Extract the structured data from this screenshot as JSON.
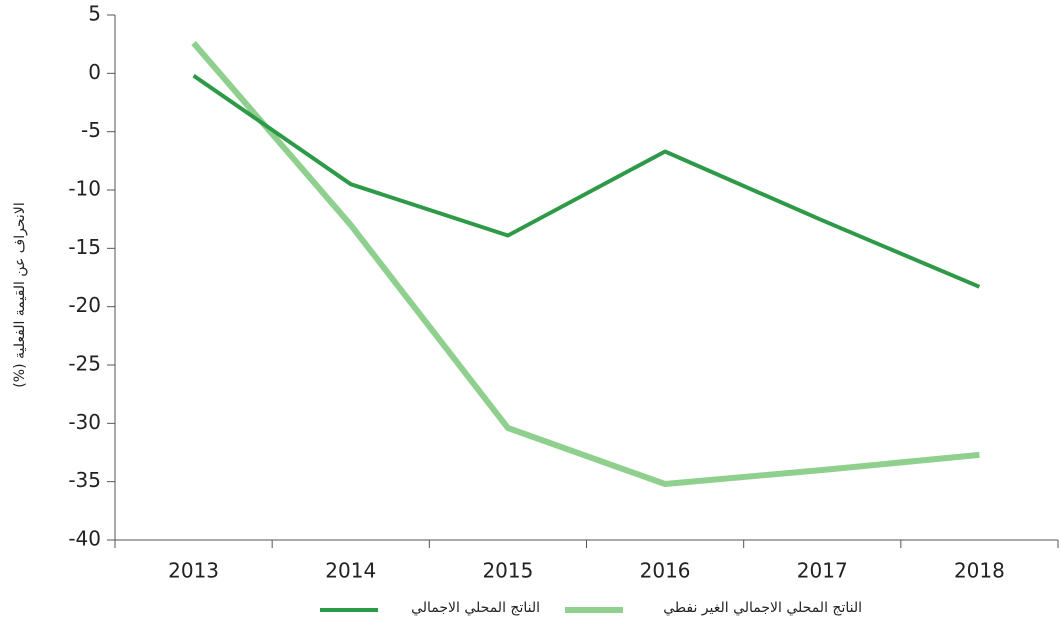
{
  "chart_data": {
    "type": "line",
    "y_label": "الانحراف عن القيمة الفعلية (%)",
    "categories": [
      "2013",
      "2014",
      "2015",
      "2016",
      "2017",
      "2018"
    ],
    "series": [
      {
        "name": "الناتج المحلي الاجمالي",
        "color": "#2e9a48",
        "values": [
          -0.2,
          -9.5,
          -13.9,
          -6.7,
          -12.6,
          -18.3
        ]
      },
      {
        "name": "الناتج المحلي الاجمالي الغير نفطي",
        "color": "#8fd08f",
        "values": [
          2.6,
          -13,
          -30.4,
          -35.2,
          -34,
          -32.7
        ]
      }
    ],
    "ylim": [
      -40,
      5
    ],
    "yticks": [
      -40,
      -35,
      -30,
      -25,
      -20,
      -15,
      -10,
      -5,
      0,
      5
    ],
    "grid": false,
    "legend": "bottom"
  }
}
